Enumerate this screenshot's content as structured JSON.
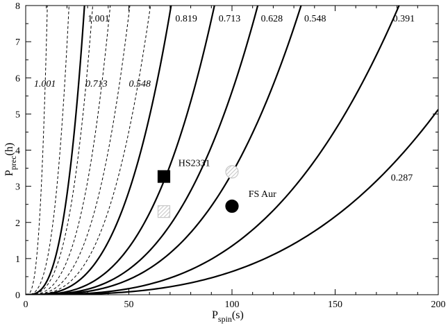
{
  "chart_data": {
    "type": "line",
    "xlim": [
      0,
      200
    ],
    "ylim": [
      0,
      8
    ],
    "x_ticks": [
      0,
      50,
      100,
      150,
      200
    ],
    "y_ticks": [
      0,
      1,
      2,
      3,
      4,
      5,
      6,
      7,
      8
    ],
    "x_tick_labels": [
      "0",
      "50",
      "100",
      "150",
      "200"
    ],
    "y_tick_labels": [
      "0",
      "1",
      "2",
      "3",
      "4",
      "5",
      "6",
      "7",
      "8"
    ],
    "xlabel_main": "P",
    "xlabel_sub": "spin",
    "xlabel_unit": "(s)",
    "ylabel_main": "P",
    "ylabel_sub": "prec",
    "ylabel_unit": "(h)",
    "grid": false,
    "curve_model": "y = k * x^3",
    "solid_series": [
      {
        "name": "1.001",
        "k_value_at_x": 28.5
      },
      {
        "name": "0.819",
        "k_value_at_x": 70.5
      },
      {
        "name": "0.713",
        "k_value_at_x": 91.5
      },
      {
        "name": "0.628",
        "k_value_at_x": 112.5
      },
      {
        "name": "0.548",
        "k_value_at_x": 133.5
      },
      {
        "name": "0.391",
        "k_value_at_x": 181.0
      },
      {
        "name": "0.287",
        "k_value_at_x": 232.0
      }
    ],
    "dashed_series": [
      {
        "name": "1.001",
        "k_value_at_x": 10.5
      },
      {
        "name": "",
        "k_value_at_x": 21.0
      },
      {
        "name": "0.713",
        "k_value_at_x": 32.5
      },
      {
        "name": "",
        "k_value_at_x": 41.0
      },
      {
        "name": "0.548",
        "k_value_at_x": 50.5
      },
      {
        "name": "",
        "k_value_at_x": 60.5
      }
    ],
    "points": [
      {
        "label": "HS2331",
        "x": 67,
        "y": 3.27,
        "marker": "square",
        "fill": "#000000"
      },
      {
        "label": "",
        "x": 67,
        "y": 2.3,
        "marker": "square",
        "fill": "hatched-gray"
      },
      {
        "label": "FS Aur",
        "x": 100,
        "y": 2.45,
        "marker": "circle",
        "fill": "#000000"
      },
      {
        "label": "",
        "x": 100,
        "y": 3.4,
        "marker": "circle",
        "fill": "hatched-gray"
      }
    ],
    "solid_curve_labels": [
      {
        "text": "1.001",
        "x": 30,
        "y": 7.65
      },
      {
        "text": "0.819",
        "x": 72.5,
        "y": 7.65
      },
      {
        "text": "0.713",
        "x": 93.5,
        "y": 7.65
      },
      {
        "text": "0.628",
        "x": 114,
        "y": 7.65
      },
      {
        "text": "0.548",
        "x": 135,
        "y": 7.65
      },
      {
        "text": "0.391",
        "x": 178,
        "y": 7.65
      },
      {
        "text": "0.287",
        "x": 177,
        "y": 3.25
      }
    ],
    "dashed_curve_labels": [
      {
        "text": "1.001",
        "x": 4,
        "y": 5.85
      },
      {
        "text": "0.713",
        "x": 29,
        "y": 5.85
      },
      {
        "text": "0.548",
        "x": 50,
        "y": 5.85
      }
    ],
    "point_labels": [
      {
        "text": "HS2331",
        "x": 74,
        "y": 3.65
      },
      {
        "text": "FS Aur",
        "x": 108,
        "y": 2.8
      }
    ],
    "hatch_color": "#c8c8c8"
  }
}
